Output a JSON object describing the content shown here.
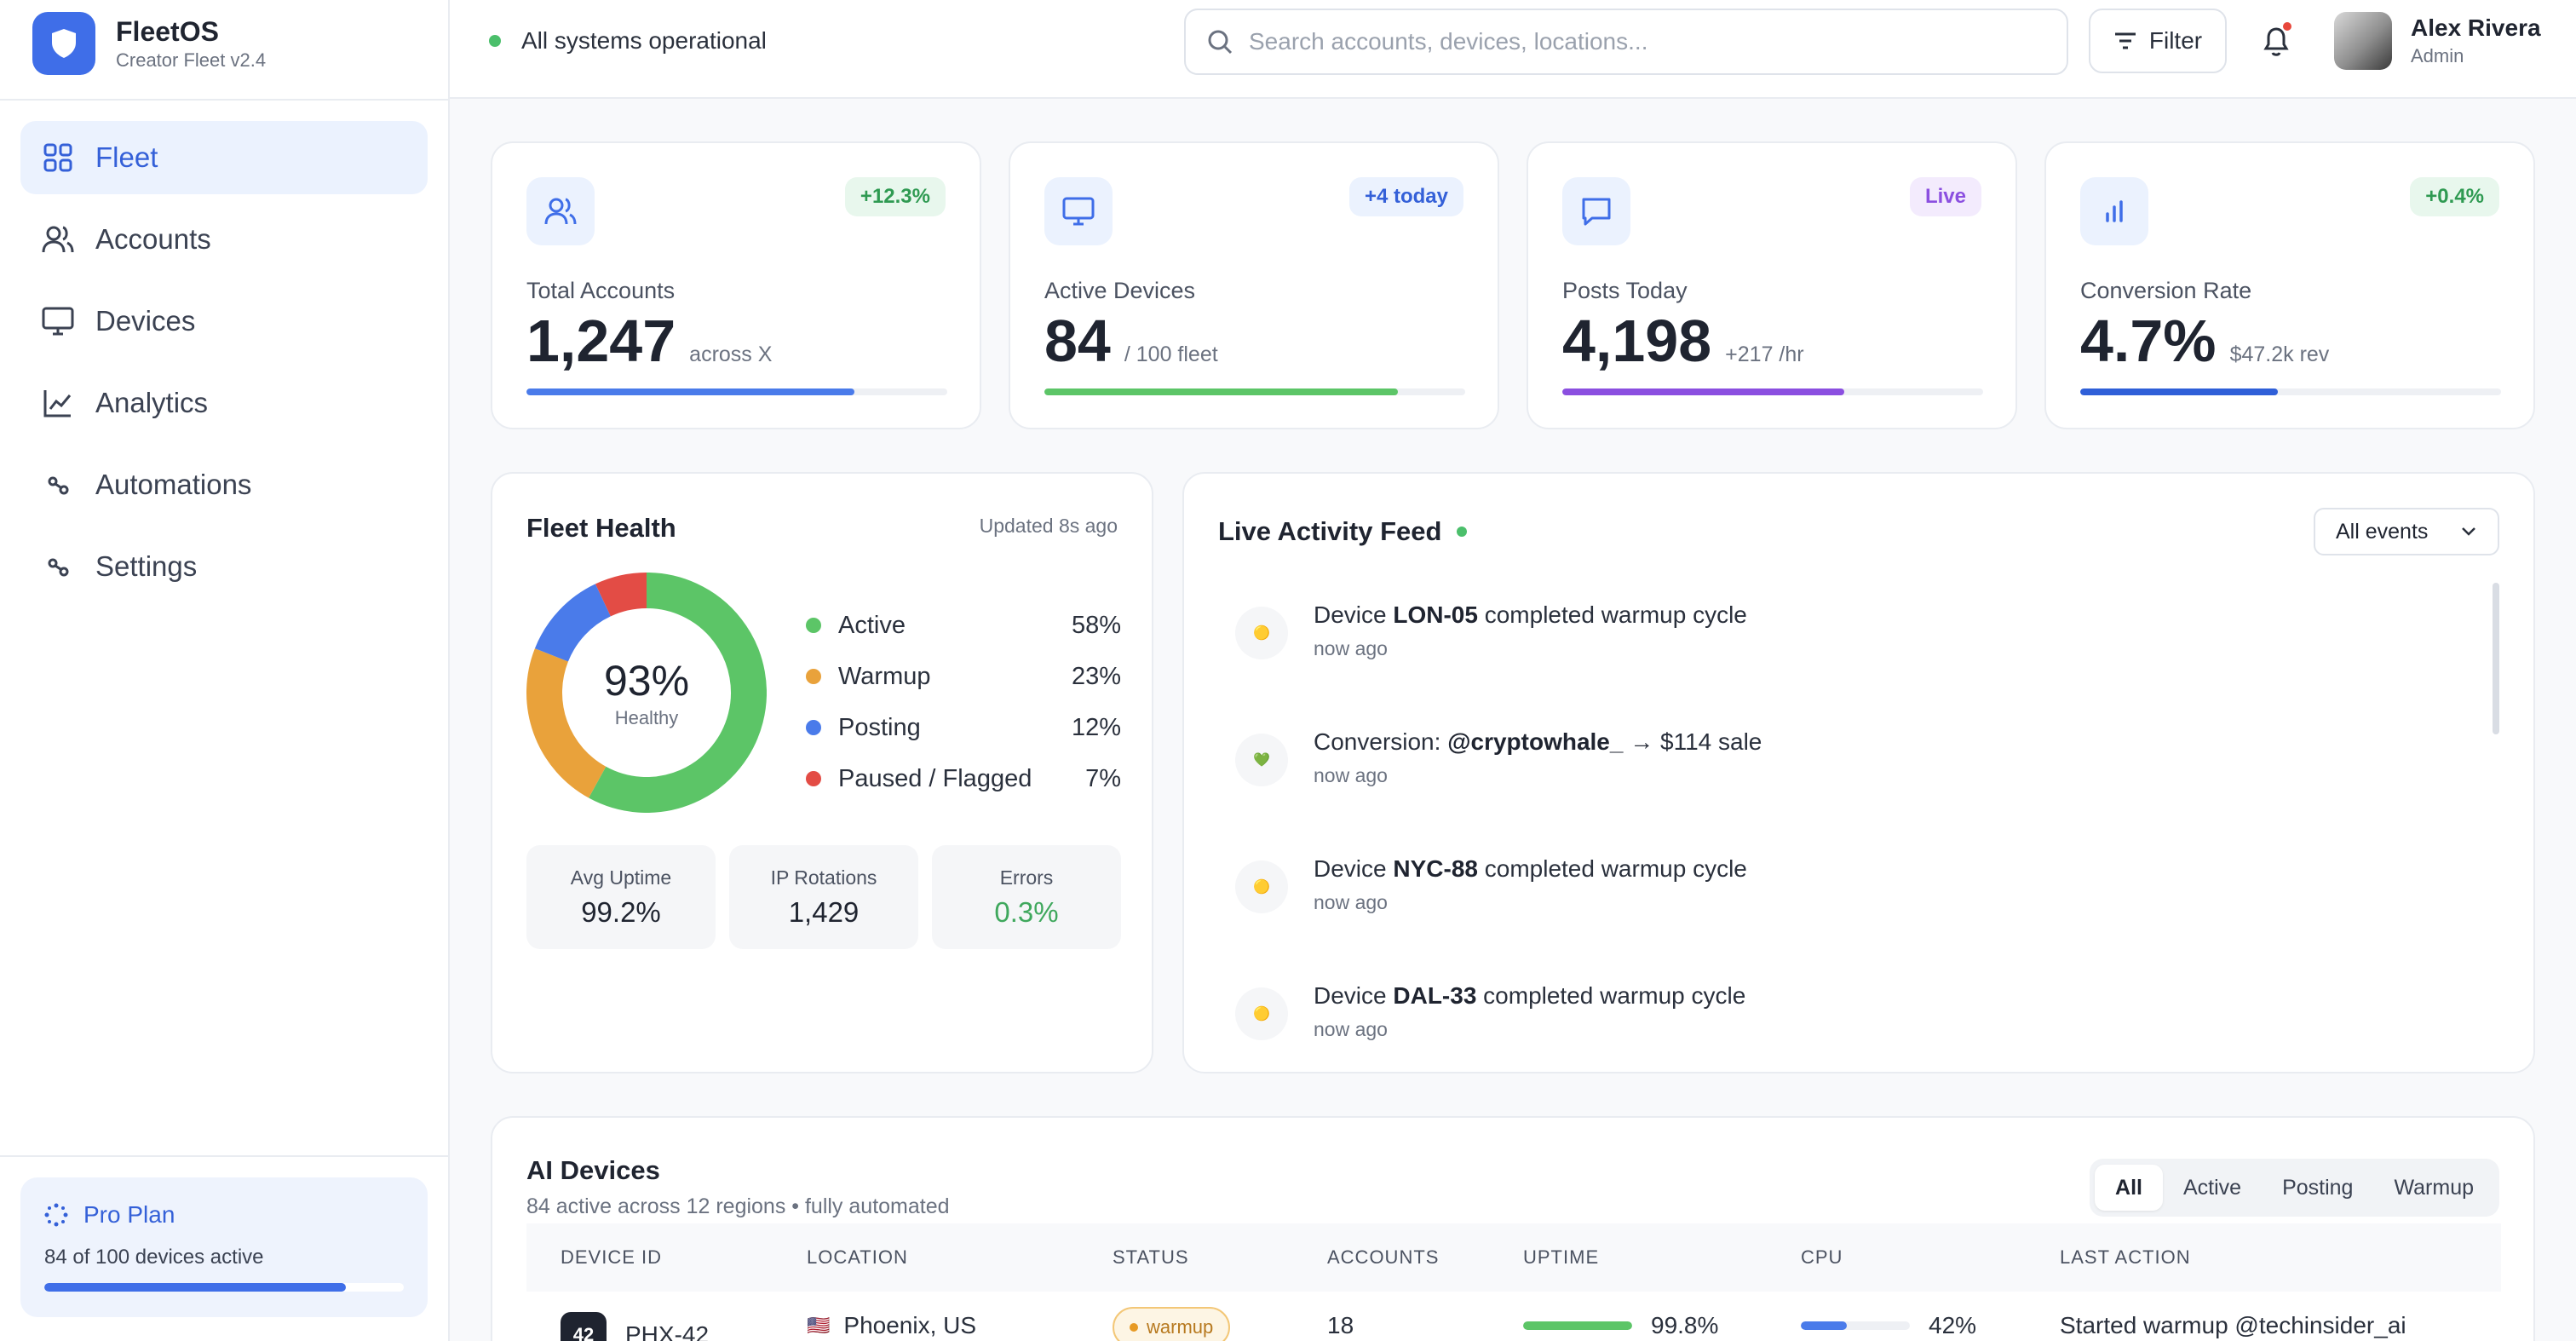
{
  "brand": {
    "name": "FleetOS",
    "subtitle": "Creator Fleet v2.4"
  },
  "sidebar": {
    "items": [
      {
        "label": "Fleet",
        "icon": "grid-icon",
        "active": true
      },
      {
        "label": "Accounts",
        "icon": "users-icon"
      },
      {
        "label": "Devices",
        "icon": "monitor-icon"
      },
      {
        "label": "Analytics",
        "icon": "line-chart-icon"
      },
      {
        "label": "Automations",
        "icon": "workflow-icon"
      },
      {
        "label": "Settings",
        "icon": "workflow-icon"
      }
    ],
    "plan": {
      "title": "Pro Plan",
      "subtitle": "84 of 100 devices active",
      "progress": 0.84
    }
  },
  "header": {
    "status": "All systems operational",
    "search_placeholder": "Search accounts, devices, locations...",
    "filter_label": "Filter",
    "user": {
      "name": "Alex Rivera",
      "role": "Admin"
    }
  },
  "stats": [
    {
      "label": "Total Accounts",
      "value": "1,247",
      "sub": "across X",
      "badge": "+12.3%",
      "progress": 0.78,
      "color": "#4a7bea"
    },
    {
      "label": "Active Devices",
      "value": "84",
      "sub": "/ 100 fleet",
      "badge": "+4 today",
      "progress": 0.84,
      "color": "#5cc567"
    },
    {
      "label": "Posts Today",
      "value": "4,198",
      "sub": "+217 /hr",
      "badge": "Live",
      "progress": 0.67,
      "color": "#8b4fe0"
    },
    {
      "label": "Conversion Rate",
      "value": "4.7%",
      "sub": "$47.2k rev",
      "badge": "+0.4%",
      "progress": 0.47,
      "color": "#2f5fd8"
    }
  ],
  "health": {
    "title": "Fleet Health",
    "updated": "Updated 8s ago",
    "center_value": "93%",
    "center_label": "Healthy",
    "segments": [
      {
        "label": "Active",
        "pct": "58%",
        "value": 58,
        "color": "#5cc567"
      },
      {
        "label": "Warmup",
        "pct": "23%",
        "value": 23,
        "color": "#e9a23b"
      },
      {
        "label": "Posting",
        "pct": "12%",
        "value": 12,
        "color": "#4a7bea"
      },
      {
        "label": "Paused / Flagged",
        "pct": "7%",
        "value": 7,
        "color": "#e34c45"
      }
    ],
    "mini": [
      {
        "label": "Avg Uptime",
        "value": "99.2%"
      },
      {
        "label": "IP Rotations",
        "value": "1,429"
      },
      {
        "label": "Errors",
        "value": "0.3%",
        "color": "#3fa85d"
      }
    ]
  },
  "feed": {
    "title": "Live Activity Feed",
    "filter": "All events",
    "items": [
      {
        "emoji": "🟡",
        "pre": "Device ",
        "bold": "LON-05",
        "post": " completed warmup cycle",
        "time": "now ago"
      },
      {
        "emoji": "💚",
        "pre": "Conversion: ",
        "bold": "@cryptowhale_",
        "post": " → $114 sale",
        "time": "now ago"
      },
      {
        "emoji": "🟡",
        "pre": "Device ",
        "bold": "NYC-88",
        "post": " completed warmup cycle",
        "time": "now ago"
      },
      {
        "emoji": "🟡",
        "pre": "Device ",
        "bold": "DAL-33",
        "post": " completed warmup cycle",
        "time": "now ago"
      }
    ]
  },
  "devices": {
    "title": "AI Devices",
    "subtitle": "84 active across 12 regions • fully automated",
    "tabs": [
      "All",
      "Active",
      "Posting",
      "Warmup"
    ],
    "columns": [
      "DEVICE ID",
      "LOCATION",
      "STATUS",
      "ACCOUNTS",
      "UPTIME",
      "CPU",
      "LAST ACTION"
    ],
    "rows": [
      {
        "chip": "42",
        "id": "PHX-42",
        "flag": "🇺🇸",
        "location": "Phoenix, US",
        "status": "warmup",
        "accounts": "18",
        "uptime": "99.8%",
        "uptime_value": 0.998,
        "cpu": "42%",
        "cpu_value": 0.42,
        "last_action": "Started warmup @techinsider_ai"
      }
    ]
  }
}
